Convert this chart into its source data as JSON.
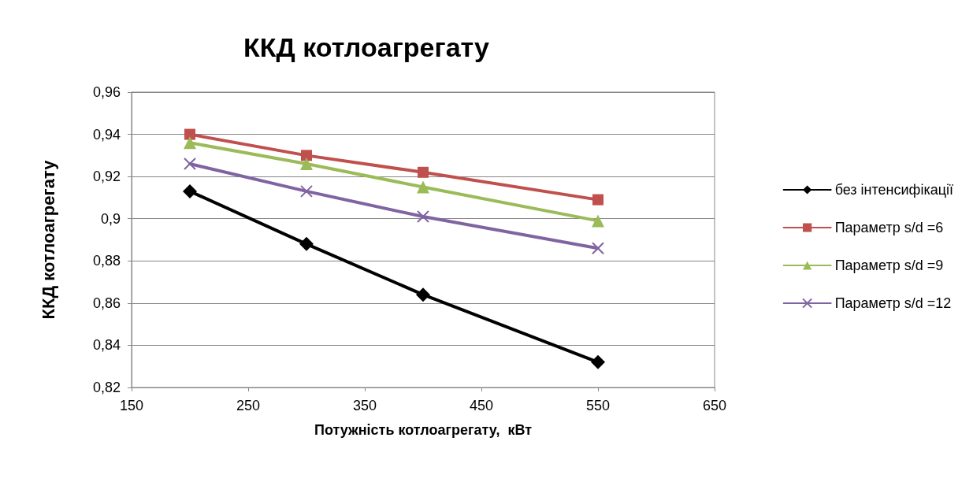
{
  "chart_data": {
    "type": "line",
    "title": "ККД котлоагрегату",
    "xlabel": "Потужність котлоагрегату,  кВт",
    "ylabel": "ККД котлоагрегату",
    "x": [
      200,
      300,
      400,
      550
    ],
    "series": [
      {
        "name": "без інтенсифікації",
        "color": "#000000",
        "marker": "diamond",
        "values": [
          0.913,
          0.888,
          0.864,
          0.832
        ]
      },
      {
        "name": "Параметр s/d =6",
        "color": "#c0504d",
        "marker": "square",
        "values": [
          0.94,
          0.93,
          0.922,
          0.909
        ]
      },
      {
        "name": "Параметр s/d =9",
        "color": "#9bbb59",
        "marker": "triangle",
        "values": [
          0.936,
          0.926,
          0.915,
          0.899
        ]
      },
      {
        "name": "Параметр s/d =12",
        "color": "#8064a2",
        "marker": "cross",
        "values": [
          0.926,
          0.913,
          0.901,
          0.886
        ]
      }
    ],
    "xlim": [
      150,
      650
    ],
    "xticks": [
      150,
      250,
      350,
      450,
      550,
      650
    ],
    "ylim": [
      0.82,
      0.96
    ],
    "yticks": [
      {
        "value": 0.82,
        "label": "0,82"
      },
      {
        "value": 0.84,
        "label": "0,84"
      },
      {
        "value": 0.86,
        "label": "0,86"
      },
      {
        "value": 0.88,
        "label": "0,88"
      },
      {
        "value": 0.9,
        "label": "0,9"
      },
      {
        "value": 0.92,
        "label": "0,92"
      },
      {
        "value": 0.94,
        "label": "0,94"
      },
      {
        "value": 0.96,
        "label": "0,96"
      }
    ],
    "grid": "y",
    "legend": "right",
    "line_style": "solid"
  }
}
